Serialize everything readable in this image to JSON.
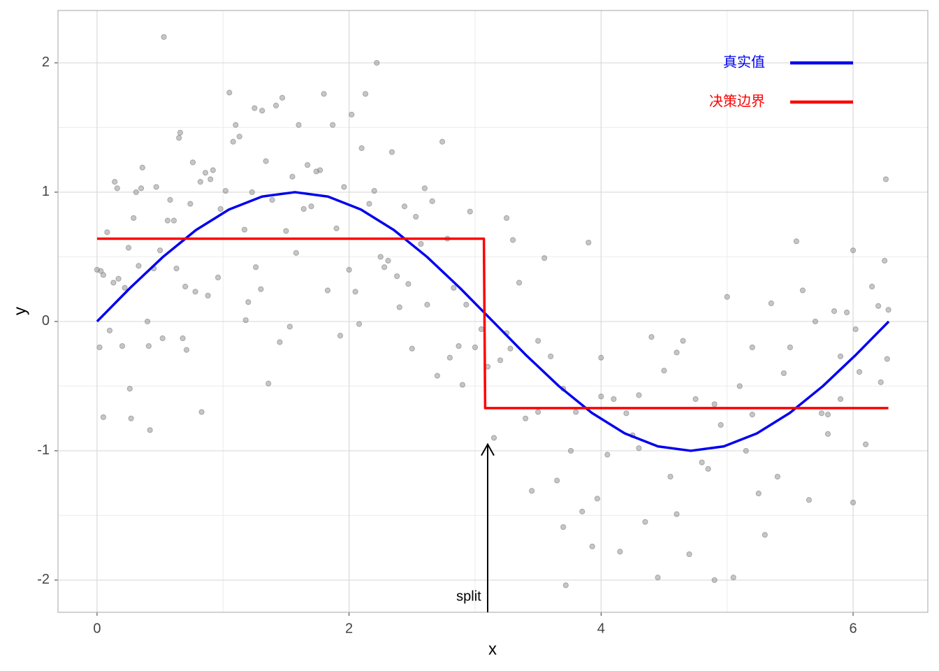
{
  "chart_data": {
    "type": "scatter",
    "xlabel": "x",
    "ylabel": "y",
    "xlim": [
      -0.31,
      6.593
    ],
    "ylim": [
      -2.249,
      2.405
    ],
    "xticks": [
      0,
      2,
      4,
      6
    ],
    "yticks": [
      -2,
      -1,
      0,
      1,
      2
    ],
    "grid": true,
    "minor_grid": true,
    "legend": "top-right",
    "points": {
      "color": "#808080",
      "x": [
        0.0,
        0.03,
        0.05,
        0.02,
        0.05,
        0.08,
        0.1,
        0.13,
        0.14,
        0.16,
        0.17,
        0.2,
        0.22,
        0.25,
        0.26,
        0.27,
        0.29,
        0.31,
        0.33,
        0.35,
        0.36,
        0.4,
        0.41,
        0.42,
        0.45,
        0.47,
        0.5,
        0.52,
        0.53,
        0.56,
        0.58,
        0.61,
        0.63,
        0.65,
        0.66,
        0.68,
        0.7,
        0.71,
        0.74,
        0.76,
        0.78,
        0.82,
        0.83,
        0.86,
        0.88,
        0.9,
        0.92,
        0.96,
        0.98,
        1.02,
        1.05,
        1.08,
        1.1,
        1.13,
        1.17,
        1.18,
        1.2,
        1.23,
        1.25,
        1.26,
        1.3,
        1.31,
        1.34,
        1.36,
        1.39,
        1.42,
        1.45,
        1.47,
        1.5,
        1.53,
        1.55,
        1.58,
        1.6,
        1.64,
        1.67,
        1.7,
        1.74,
        1.77,
        1.8,
        1.83,
        1.87,
        1.9,
        1.93,
        1.96,
        2.0,
        2.02,
        2.05,
        2.08,
        2.1,
        2.13,
        2.16,
        2.2,
        2.22,
        2.25,
        2.28,
        2.31,
        2.34,
        2.38,
        2.4,
        2.44,
        2.47,
        2.5,
        2.53,
        2.57,
        2.6,
        2.62,
        2.66,
        2.7,
        2.74,
        2.78,
        2.8,
        2.83,
        2.87,
        2.9,
        2.93,
        2.96,
        3.0,
        3.05,
        3.1,
        3.15,
        3.2,
        3.25,
        3.28,
        3.3,
        3.35,
        3.4,
        3.45,
        3.5,
        3.55,
        3.6,
        3.65,
        3.7,
        3.72,
        3.76,
        3.8,
        3.85,
        3.9,
        3.93,
        3.97,
        4.0,
        4.05,
        4.1,
        4.15,
        4.2,
        4.25,
        4.3,
        4.35,
        4.4,
        4.45,
        4.5,
        4.55,
        4.6,
        4.65,
        4.7,
        4.75,
        4.8,
        4.85,
        4.9,
        4.95,
        5.0,
        5.05,
        5.1,
        5.15,
        5.2,
        5.25,
        5.3,
        5.35,
        5.4,
        5.45,
        5.5,
        5.55,
        5.6,
        5.65,
        5.7,
        5.75,
        5.8,
        5.85,
        5.9,
        5.95,
        6.0,
        6.02,
        6.05,
        6.1,
        6.15,
        6.2,
        6.22,
        6.25,
        6.27,
        6.26,
        6.28,
        6.0,
        5.8,
        5.9,
        5.2,
        4.9,
        4.6,
        4.3,
        4.0,
        3.7,
        3.5,
        3.25
      ],
      "y": [
        0.4,
        0.39,
        0.36,
        -0.2,
        -0.74,
        0.69,
        -0.07,
        0.3,
        1.08,
        1.03,
        0.33,
        -0.19,
        0.26,
        0.57,
        -0.52,
        -0.75,
        0.8,
        1.0,
        0.43,
        1.03,
        1.19,
        0.0,
        -0.19,
        -0.84,
        0.41,
        1.04,
        0.55,
        -0.13,
        2.2,
        0.78,
        0.94,
        0.78,
        0.41,
        1.42,
        1.46,
        -0.13,
        0.27,
        -0.22,
        0.91,
        1.23,
        0.23,
        1.08,
        -0.7,
        1.15,
        0.2,
        1.1,
        1.17,
        0.34,
        0.87,
        1.01,
        1.77,
        1.39,
        1.52,
        1.43,
        0.71,
        0.01,
        0.15,
        1.0,
        1.65,
        0.42,
        0.25,
        1.63,
        1.24,
        -0.48,
        0.94,
        1.67,
        -0.16,
        1.73,
        0.7,
        -0.04,
        1.12,
        0.53,
        1.52,
        0.87,
        1.21,
        0.89,
        1.16,
        1.17,
        1.76,
        0.24,
        1.52,
        0.72,
        -0.11,
        1.04,
        0.4,
        1.6,
        0.23,
        -0.02,
        1.34,
        1.76,
        0.91,
        1.01,
        2.0,
        0.5,
        0.42,
        0.47,
        1.31,
        0.35,
        0.11,
        0.89,
        0.29,
        -0.21,
        0.81,
        0.6,
        1.03,
        0.13,
        0.93,
        -0.42,
        1.39,
        0.64,
        -0.28,
        0.26,
        -0.19,
        -0.49,
        0.13,
        0.85,
        -0.2,
        -0.06,
        -0.35,
        -0.9,
        -0.3,
        0.8,
        -0.21,
        0.63,
        0.3,
        -0.75,
        -1.31,
        -0.7,
        0.49,
        -0.27,
        -1.23,
        -1.59,
        -2.04,
        -1.0,
        -0.7,
        -1.47,
        0.61,
        -1.74,
        -1.37,
        -0.28,
        -1.03,
        -0.6,
        -1.78,
        -0.71,
        -0.88,
        -0.57,
        -1.55,
        -0.12,
        -1.98,
        -0.38,
        -1.2,
        -1.49,
        -0.15,
        -1.8,
        -0.6,
        -1.09,
        -1.14,
        -2.0,
        -0.8,
        0.19,
        -1.98,
        -0.5,
        -1.0,
        -0.2,
        -1.33,
        -1.65,
        0.14,
        -1.2,
        -0.4,
        -0.2,
        0.62,
        0.24,
        -1.38,
        0.0,
        -0.71,
        -0.87,
        0.08,
        -0.6,
        0.07,
        -1.4,
        -0.06,
        -0.39,
        -0.95,
        0.27,
        0.12,
        -0.47,
        0.47,
        -0.29,
        1.1,
        0.09,
        0.55,
        -0.72,
        -0.27,
        -0.72,
        -0.64,
        -0.24,
        -0.98,
        -0.58,
        -0.52,
        -0.15,
        -0.09
      ]
    },
    "series": [
      {
        "name": "真实值",
        "color": "#0000ee",
        "x": [
          0,
          0.262,
          0.524,
          0.785,
          1.047,
          1.309,
          1.571,
          1.833,
          2.094,
          2.356,
          2.618,
          2.88,
          3.142,
          3.403,
          3.665,
          3.927,
          4.189,
          4.451,
          4.712,
          4.974,
          5.236,
          5.498,
          5.76,
          6.021,
          6.283
        ],
        "values": [
          0,
          0.259,
          0.5,
          0.707,
          0.866,
          0.966,
          1,
          0.966,
          0.866,
          0.707,
          0.5,
          0.259,
          0,
          -0.259,
          -0.5,
          -0.707,
          -0.866,
          -0.966,
          -1,
          -0.966,
          -0.866,
          -0.707,
          -0.5,
          -0.259,
          0
        ]
      },
      {
        "name": "决策边界",
        "color": "#ff0000",
        "x": [
          0,
          3.07,
          3.08,
          6.28
        ],
        "values": [
          0.64,
          0.64,
          -0.67,
          -0.67
        ]
      }
    ],
    "annotation": {
      "text": "split",
      "x": 2.95,
      "y": -2.13,
      "arrow_x": 3.1,
      "arrow_y": [
        -2.249,
        -0.95
      ]
    }
  }
}
